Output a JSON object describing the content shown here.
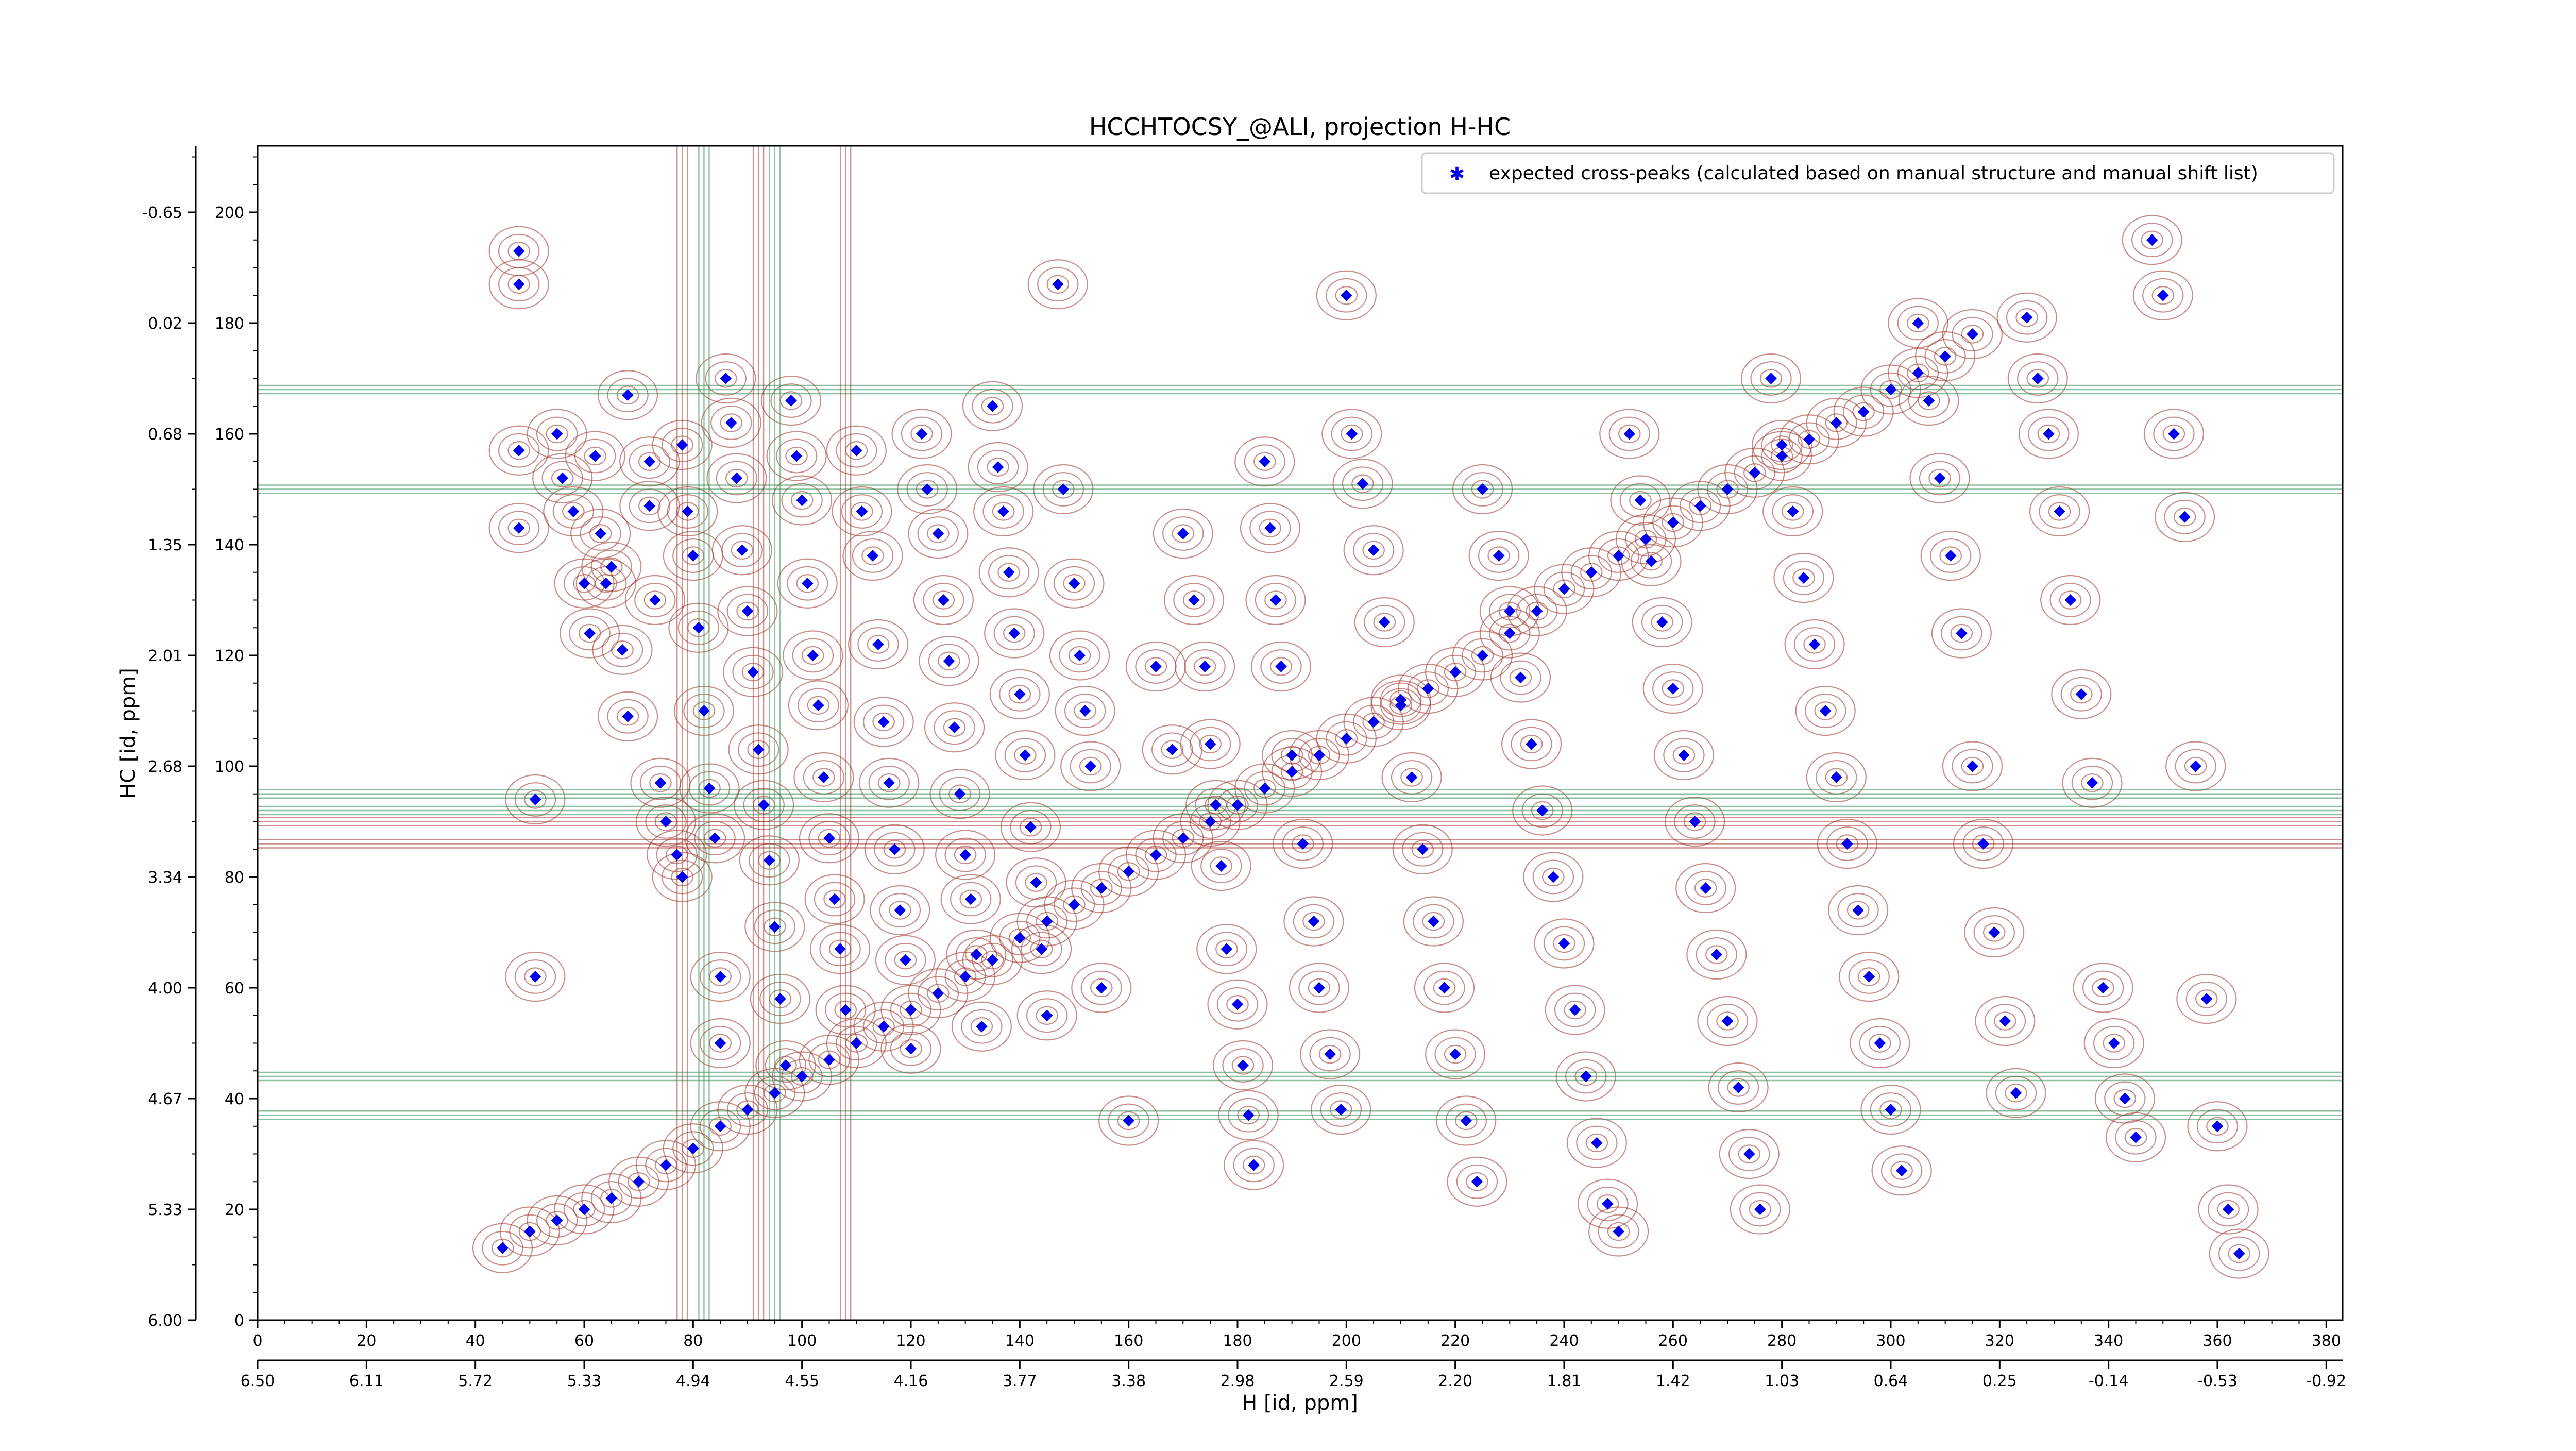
{
  "chart_data": {
    "type": "scatter",
    "title": "HCCHTOCSY_@ALI, projection H-HC",
    "xlabel": "H [id, ppm]",
    "ylabel": "HC [id, ppm]",
    "xlim": [
      0,
      383
    ],
    "ylim": [
      0,
      212
    ],
    "x_ticks": [
      0,
      20,
      40,
      60,
      80,
      100,
      120,
      140,
      160,
      180,
      200,
      220,
      240,
      260,
      280,
      300,
      320,
      340,
      360,
      380
    ],
    "y_ticks": [
      0,
      20,
      40,
      60,
      80,
      100,
      120,
      140,
      160,
      180,
      200
    ],
    "x_ppm_ticks": [
      "6.50",
      "6.11",
      "5.72",
      "5.33",
      "4.94",
      "4.55",
      "4.16",
      "3.77",
      "3.38",
      "2.98",
      "2.59",
      "2.20",
      "1.81",
      "1.42",
      "1.03",
      "0.64",
      "0.25",
      "-0.14",
      "-0.53",
      "-0.92"
    ],
    "y_ppm_ticks": [
      "6.00",
      "5.33",
      "4.67",
      "4.00",
      "3.34",
      "2.68",
      "2.01",
      "1.35",
      "0.68",
      "0.02",
      "-0.65"
    ],
    "legend": {
      "position": "top-right",
      "label": "expected cross-peaks (calculated based on manual structure and manual shift list)"
    },
    "colors": {
      "points": "#0000ee",
      "contour_positive": "#a0302a",
      "contour_negative": "#2e8b4e"
    },
    "series": [
      {
        "name": "expected cross-peaks (calculated based on manual structure and manual shift list)",
        "diagonal": [
          [
            45,
            13
          ],
          [
            50,
            16
          ],
          [
            55,
            18
          ],
          [
            60,
            20
          ],
          [
            65,
            22
          ],
          [
            70,
            25
          ],
          [
            75,
            28
          ],
          [
            80,
            31
          ],
          [
            85,
            35
          ],
          [
            90,
            38
          ],
          [
            95,
            41
          ],
          [
            100,
            44
          ],
          [
            105,
            47
          ],
          [
            110,
            50
          ],
          [
            115,
            53
          ],
          [
            120,
            56
          ],
          [
            125,
            59
          ],
          [
            130,
            62
          ],
          [
            135,
            65
          ],
          [
            140,
            69
          ],
          [
            145,
            72
          ],
          [
            150,
            75
          ],
          [
            155,
            78
          ],
          [
            160,
            81
          ],
          [
            165,
            84
          ],
          [
            170,
            87
          ],
          [
            175,
            90
          ],
          [
            180,
            93
          ],
          [
            185,
            96
          ],
          [
            190,
            99
          ],
          [
            195,
            102
          ],
          [
            200,
            105
          ],
          [
            205,
            108
          ],
          [
            210,
            111
          ],
          [
            215,
            114
          ],
          [
            220,
            117
          ],
          [
            225,
            120
          ],
          [
            230,
            124
          ],
          [
            235,
            128
          ],
          [
            240,
            132
          ],
          [
            245,
            135
          ],
          [
            250,
            138
          ],
          [
            255,
            141
          ],
          [
            260,
            144
          ],
          [
            265,
            147
          ],
          [
            270,
            150
          ],
          [
            275,
            153
          ],
          [
            280,
            156
          ],
          [
            285,
            159
          ],
          [
            290,
            162
          ],
          [
            295,
            164
          ],
          [
            300,
            168
          ],
          [
            305,
            171
          ],
          [
            310,
            174
          ],
          [
            315,
            178
          ]
        ],
        "points": [
          [
            48,
            193
          ],
          [
            48,
            187
          ],
          [
            48,
            157
          ],
          [
            48,
            143
          ],
          [
            51,
            94
          ],
          [
            51,
            62
          ],
          [
            55,
            160
          ],
          [
            56,
            152
          ],
          [
            58,
            146
          ],
          [
            60,
            133
          ],
          [
            61,
            124
          ],
          [
            62,
            156
          ],
          [
            63,
            142
          ],
          [
            64,
            133
          ],
          [
            65,
            136
          ],
          [
            67,
            121
          ],
          [
            68,
            109
          ],
          [
            68,
            167
          ],
          [
            72,
            155
          ],
          [
            72,
            147
          ],
          [
            73,
            130
          ],
          [
            74,
            97
          ],
          [
            75,
            90
          ],
          [
            77,
            84
          ],
          [
            78,
            80
          ],
          [
            78,
            158
          ],
          [
            79,
            146
          ],
          [
            80,
            138
          ],
          [
            81,
            125
          ],
          [
            82,
            110
          ],
          [
            83,
            96
          ],
          [
            84,
            87
          ],
          [
            85,
            62
          ],
          [
            85,
            50
          ],
          [
            86,
            170
          ],
          [
            87,
            162
          ],
          [
            88,
            152
          ],
          [
            89,
            139
          ],
          [
            90,
            128
          ],
          [
            91,
            117
          ],
          [
            92,
            103
          ],
          [
            93,
            93
          ],
          [
            94,
            83
          ],
          [
            95,
            71
          ],
          [
            96,
            58
          ],
          [
            97,
            46
          ],
          [
            98,
            166
          ],
          [
            99,
            156
          ],
          [
            100,
            148
          ],
          [
            101,
            133
          ],
          [
            102,
            120
          ],
          [
            103,
            111
          ],
          [
            104,
            98
          ],
          [
            105,
            87
          ],
          [
            106,
            76
          ],
          [
            107,
            67
          ],
          [
            108,
            56
          ],
          [
            110,
            157
          ],
          [
            111,
            146
          ],
          [
            113,
            138
          ],
          [
            114,
            122
          ],
          [
            115,
            108
          ],
          [
            116,
            97
          ],
          [
            117,
            85
          ],
          [
            118,
            74
          ],
          [
            119,
            65
          ],
          [
            120,
            49
          ],
          [
            122,
            160
          ],
          [
            123,
            150
          ],
          [
            125,
            142
          ],
          [
            126,
            130
          ],
          [
            127,
            119
          ],
          [
            128,
            107
          ],
          [
            129,
            95
          ],
          [
            130,
            84
          ],
          [
            131,
            76
          ],
          [
            132,
            66
          ],
          [
            133,
            53
          ],
          [
            135,
            165
          ],
          [
            136,
            154
          ],
          [
            137,
            146
          ],
          [
            138,
            135
          ],
          [
            139,
            124
          ],
          [
            140,
            113
          ],
          [
            141,
            102
          ],
          [
            142,
            89
          ],
          [
            143,
            79
          ],
          [
            144,
            67
          ],
          [
            145,
            55
          ],
          [
            147,
            187
          ],
          [
            148,
            150
          ],
          [
            150,
            133
          ],
          [
            151,
            120
          ],
          [
            152,
            110
          ],
          [
            153,
            100
          ],
          [
            155,
            60
          ],
          [
            160,
            36
          ],
          [
            165,
            118
          ],
          [
            168,
            103
          ],
          [
            170,
            142
          ],
          [
            172,
            130
          ],
          [
            174,
            118
          ],
          [
            175,
            104
          ],
          [
            176,
            93
          ],
          [
            177,
            82
          ],
          [
            178,
            67
          ],
          [
            180,
            57
          ],
          [
            181,
            46
          ],
          [
            182,
            37
          ],
          [
            183,
            28
          ],
          [
            185,
            155
          ],
          [
            186,
            143
          ],
          [
            187,
            130
          ],
          [
            188,
            118
          ],
          [
            190,
            102
          ],
          [
            192,
            86
          ],
          [
            194,
            72
          ],
          [
            195,
            60
          ],
          [
            197,
            48
          ],
          [
            199,
            38
          ],
          [
            200,
            185
          ],
          [
            201,
            160
          ],
          [
            203,
            151
          ],
          [
            205,
            139
          ],
          [
            207,
            126
          ],
          [
            210,
            112
          ],
          [
            212,
            98
          ],
          [
            214,
            85
          ],
          [
            216,
            72
          ],
          [
            218,
            60
          ],
          [
            220,
            48
          ],
          [
            222,
            36
          ],
          [
            224,
            25
          ],
          [
            225,
            150
          ],
          [
            228,
            138
          ],
          [
            230,
            128
          ],
          [
            232,
            116
          ],
          [
            234,
            104
          ],
          [
            236,
            92
          ],
          [
            238,
            80
          ],
          [
            240,
            68
          ],
          [
            242,
            56
          ],
          [
            244,
            44
          ],
          [
            246,
            32
          ],
          [
            248,
            21
          ],
          [
            250,
            16
          ],
          [
            252,
            160
          ],
          [
            254,
            148
          ],
          [
            256,
            137
          ],
          [
            258,
            126
          ],
          [
            260,
            114
          ],
          [
            262,
            102
          ],
          [
            264,
            90
          ],
          [
            266,
            78
          ],
          [
            268,
            66
          ],
          [
            270,
            54
          ],
          [
            272,
            42
          ],
          [
            274,
            30
          ],
          [
            276,
            20
          ],
          [
            278,
            170
          ],
          [
            280,
            158
          ],
          [
            282,
            146
          ],
          [
            284,
            134
          ],
          [
            286,
            122
          ],
          [
            288,
            110
          ],
          [
            290,
            98
          ],
          [
            292,
            86
          ],
          [
            294,
            74
          ],
          [
            296,
            62
          ],
          [
            298,
            50
          ],
          [
            300,
            38
          ],
          [
            302,
            27
          ],
          [
            305,
            180
          ],
          [
            307,
            166
          ],
          [
            309,
            152
          ],
          [
            311,
            138
          ],
          [
            313,
            124
          ],
          [
            315,
            100
          ],
          [
            317,
            86
          ],
          [
            319,
            70
          ],
          [
            321,
            54
          ],
          [
            323,
            41
          ],
          [
            325,
            181
          ],
          [
            327,
            170
          ],
          [
            329,
            160
          ],
          [
            331,
            146
          ],
          [
            333,
            130
          ],
          [
            335,
            113
          ],
          [
            337,
            97
          ],
          [
            339,
            60
          ],
          [
            341,
            50
          ],
          [
            343,
            40
          ],
          [
            345,
            33
          ],
          [
            348,
            195
          ],
          [
            350,
            185
          ],
          [
            352,
            160
          ],
          [
            354,
            145
          ],
          [
            356,
            100
          ],
          [
            358,
            58
          ],
          [
            360,
            35
          ],
          [
            362,
            20
          ],
          [
            364,
            12
          ]
        ]
      }
    ]
  }
}
